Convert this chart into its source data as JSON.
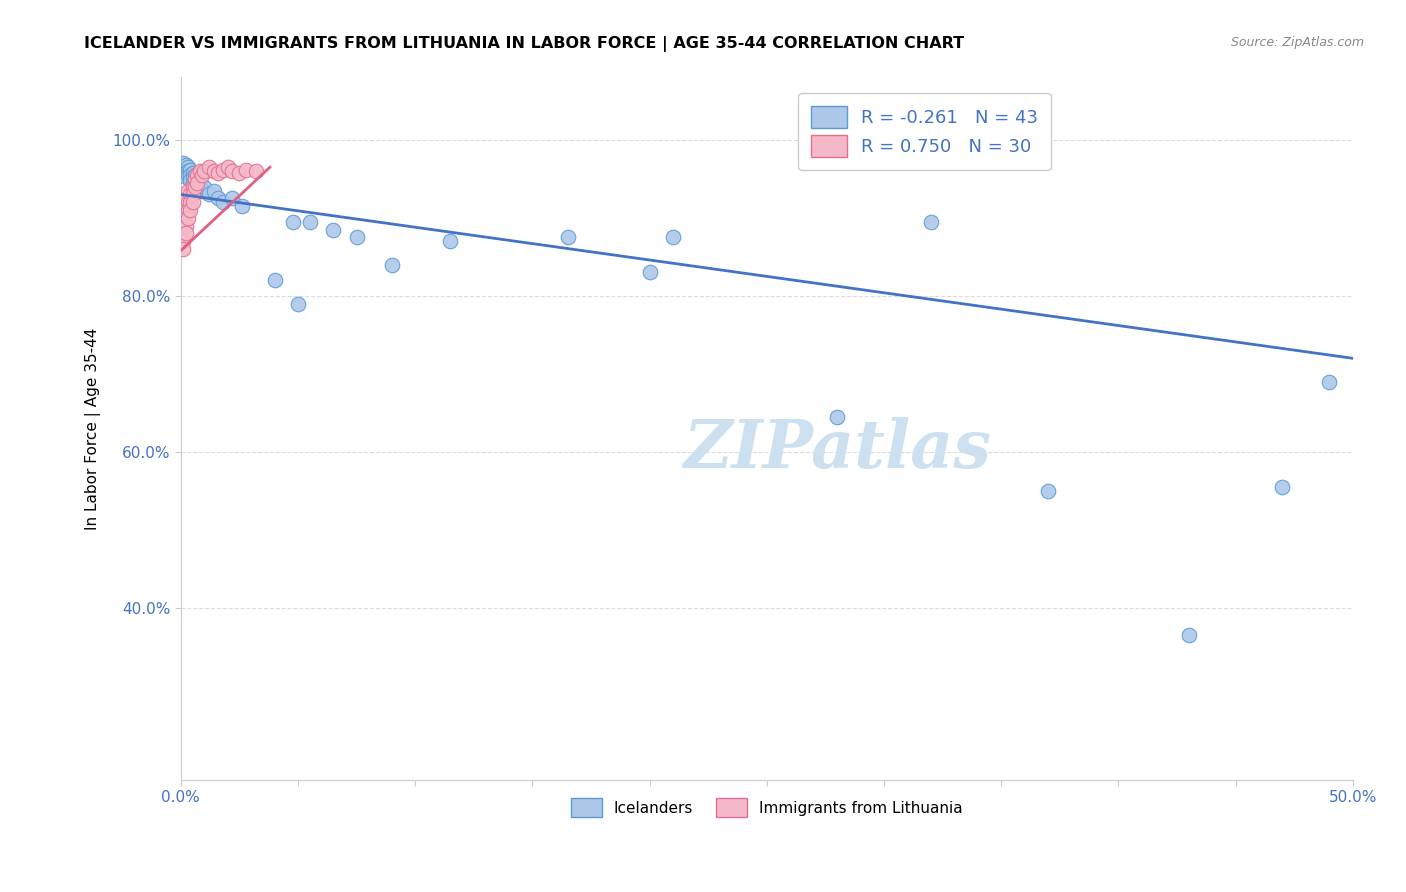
{
  "title": "ICELANDER VS IMMIGRANTS FROM LITHUANIA IN LABOR FORCE | AGE 35-44 CORRELATION CHART",
  "source": "Source: ZipAtlas.com",
  "xlabel_label": "Icelanders",
  "xlabel2_label": "Immigrants from Lithuania",
  "ylabel": "In Labor Force | Age 35-44",
  "xlim": [
    0.0,
    0.5
  ],
  "ylim": [
    0.18,
    1.08
  ],
  "xtick_positions": [
    0.0,
    0.05,
    0.1,
    0.15,
    0.2,
    0.25,
    0.3,
    0.35,
    0.4,
    0.45,
    0.5
  ],
  "xtick_labels": [
    "0.0%",
    "",
    "",
    "",
    "",
    "",
    "",
    "",
    "",
    "",
    "50.0%"
  ],
  "ytick_positions": [
    0.4,
    0.6,
    0.8,
    1.0
  ],
  "ytick_labels": [
    "40.0%",
    "60.0%",
    "80.0%",
    "100.0%"
  ],
  "legend_blue_R": "R = -0.261",
  "legend_blue_N": "N = 43",
  "legend_pink_R": "R = 0.750",
  "legend_pink_N": "N = 30",
  "blue_color": "#adc8e8",
  "blue_edge_color": "#5b9bd5",
  "pink_color": "#f4b8c8",
  "pink_edge_color": "#e07090",
  "blue_line_color": "#4472c4",
  "pink_line_color": "#e06080",
  "blue_scatter_x": [
    0.001,
    0.001,
    0.002,
    0.002,
    0.002,
    0.003,
    0.003,
    0.003,
    0.004,
    0.004,
    0.004,
    0.005,
    0.005,
    0.005,
    0.006,
    0.006,
    0.007,
    0.008,
    0.009,
    0.01,
    0.012,
    0.014,
    0.016,
    0.018,
    0.022,
    0.026,
    0.04,
    0.048,
    0.055,
    0.065,
    0.075,
    0.09,
    0.115,
    0.165,
    0.21,
    0.28,
    0.32,
    0.37,
    0.43,
    0.47,
    0.49,
    0.05,
    0.2
  ],
  "blue_scatter_y": [
    0.97,
    0.962,
    0.968,
    0.958,
    0.952,
    0.965,
    0.96,
    0.955,
    0.962,
    0.955,
    0.948,
    0.958,
    0.952,
    0.945,
    0.955,
    0.948,
    0.94,
    0.945,
    0.935,
    0.94,
    0.93,
    0.935,
    0.925,
    0.92,
    0.925,
    0.915,
    0.82,
    0.895,
    0.895,
    0.885,
    0.875,
    0.84,
    0.87,
    0.875,
    0.875,
    0.645,
    0.895,
    0.55,
    0.365,
    0.555,
    0.69,
    0.79,
    0.83
  ],
  "pink_scatter_x": [
    0.001,
    0.001,
    0.002,
    0.002,
    0.003,
    0.003,
    0.003,
    0.003,
    0.004,
    0.004,
    0.004,
    0.005,
    0.005,
    0.005,
    0.006,
    0.006,
    0.007,
    0.007,
    0.008,
    0.009,
    0.01,
    0.012,
    0.014,
    0.016,
    0.018,
    0.02,
    0.022,
    0.025,
    0.028,
    0.032
  ],
  "pink_scatter_y": [
    0.87,
    0.86,
    0.89,
    0.88,
    0.935,
    0.92,
    0.91,
    0.9,
    0.93,
    0.92,
    0.91,
    0.94,
    0.93,
    0.92,
    0.95,
    0.94,
    0.955,
    0.945,
    0.96,
    0.955,
    0.96,
    0.965,
    0.96,
    0.958,
    0.962,
    0.965,
    0.96,
    0.958,
    0.962,
    0.96
  ],
  "blue_trendline_x": [
    0.0,
    0.5
  ],
  "blue_trendline_y": [
    0.93,
    0.72
  ],
  "pink_trendline_x": [
    0.0,
    0.038
  ],
  "pink_trendline_y": [
    0.858,
    0.965
  ],
  "watermark_text": "ZIPatlas",
  "watermark_color": "#cce0f0",
  "background_color": "#ffffff",
  "grid_color": "#cccccc"
}
